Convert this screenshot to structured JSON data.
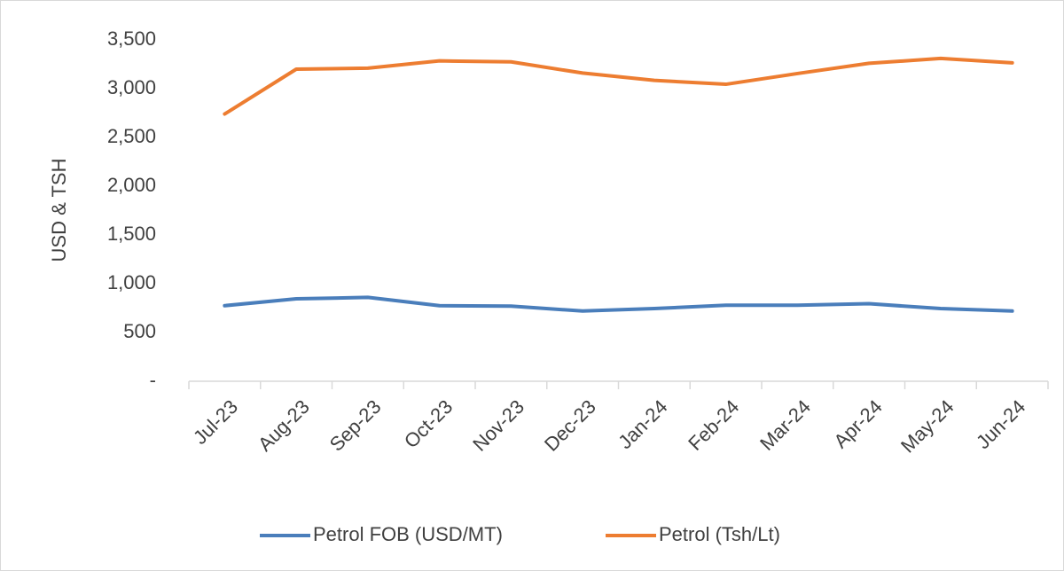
{
  "chart_data": {
    "type": "line",
    "y_label": "USD & TSH",
    "categories": [
      "Jul-23",
      "Aug-23",
      "Sep-23",
      "Oct-23",
      "Nov-23",
      "Dec-23",
      "Jan-24",
      "Feb-24",
      "Mar-24",
      "Apr-24",
      "May-24",
      "Jun-24"
    ],
    "series": [
      {
        "name": "Petrol FOB (USD/MT)",
        "color": "#4a7ebb",
        "values": [
          775,
          845,
          860,
          775,
          770,
          720,
          745,
          780,
          780,
          795,
          745,
          720
        ]
      },
      {
        "name": "Petrol (Tsh/Lt)",
        "color": "#ed7d31",
        "values": [
          2740,
          3200,
          3210,
          3285,
          3275,
          3160,
          3085,
          3045,
          3155,
          3260,
          3310,
          3265
        ]
      }
    ],
    "ylim": [
      0,
      3500
    ],
    "yticks": [
      {
        "value": 0,
        "label": "-"
      },
      500,
      {
        "value": 1000,
        "label": "1,000"
      },
      {
        "value": 1500,
        "label": "1,500"
      },
      {
        "value": 2000,
        "label": "2,000"
      },
      {
        "value": 2500,
        "label": "2,500"
      },
      {
        "value": 3000,
        "label": "3,000"
      },
      {
        "value": 3500,
        "label": "3,500"
      }
    ],
    "grid": false,
    "legend": "bottom"
  }
}
